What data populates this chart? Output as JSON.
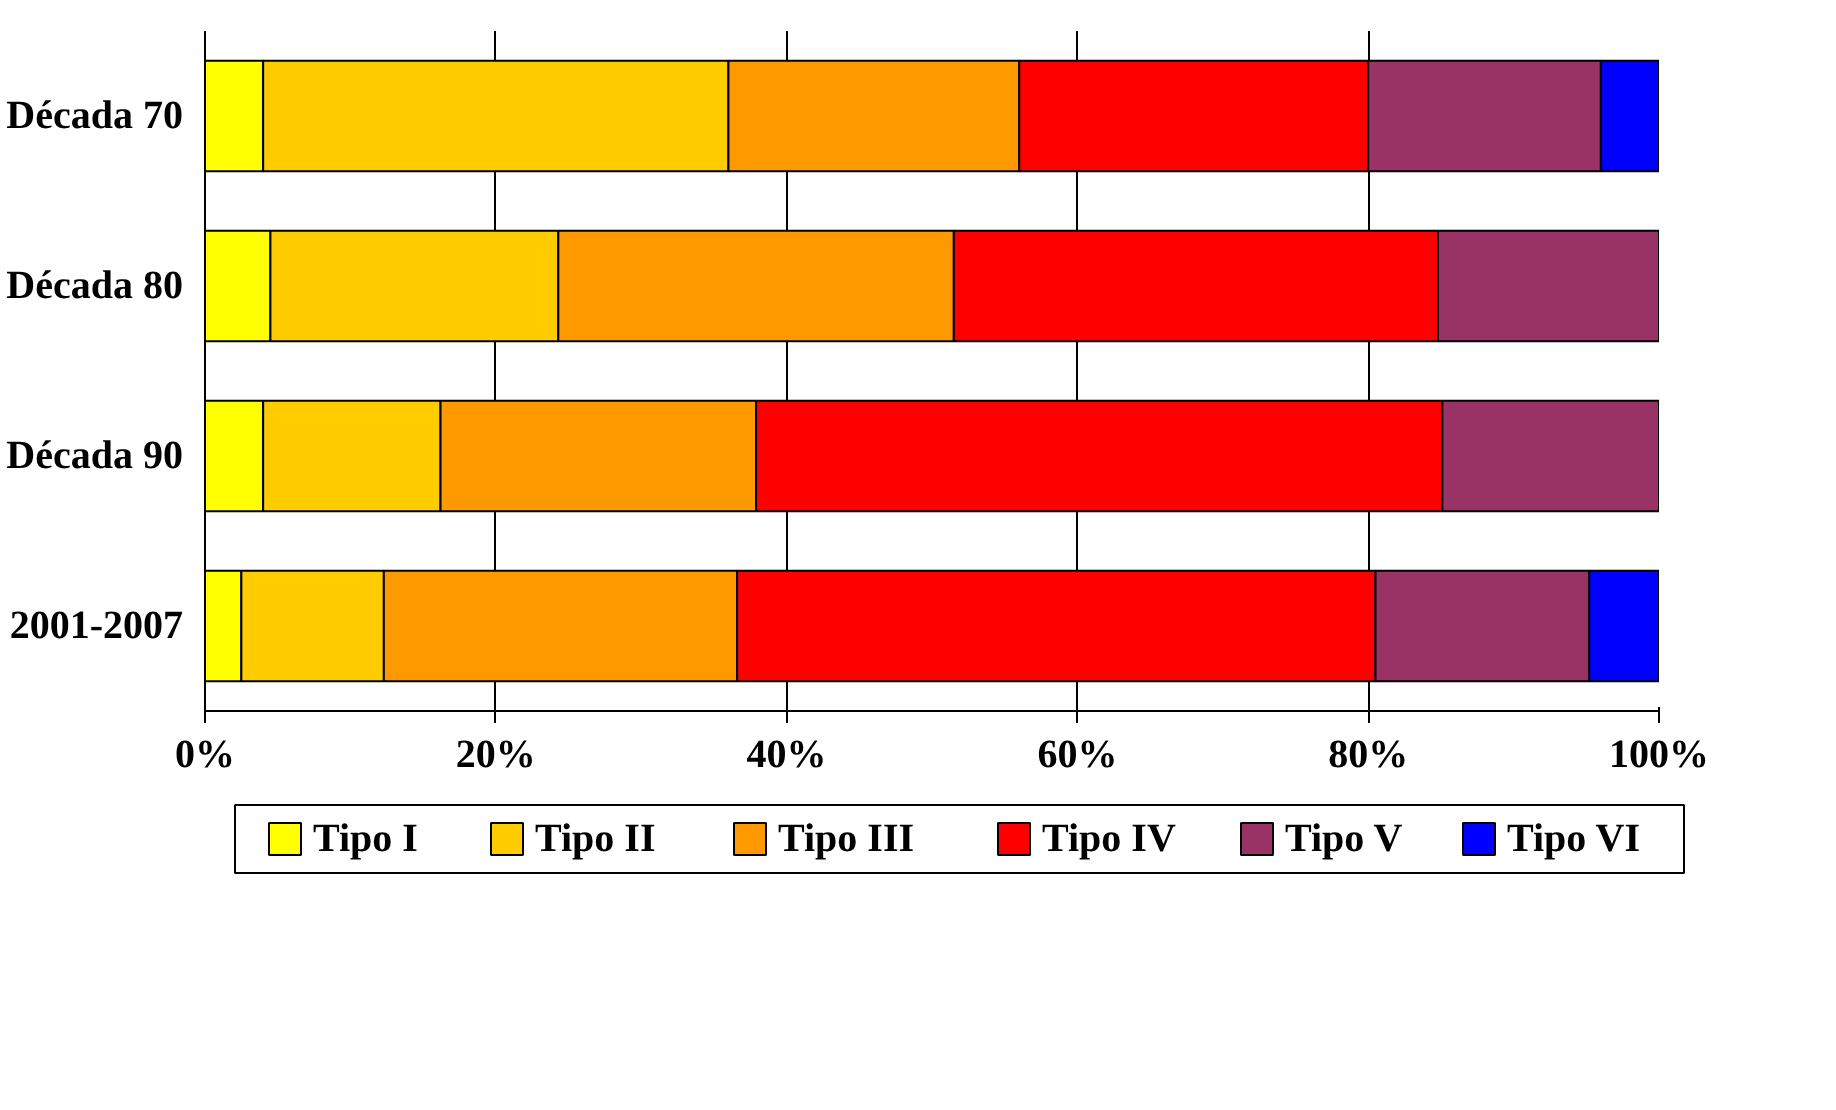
{
  "chart_data": {
    "type": "bar",
    "orientation": "horizontal",
    "stacked": true,
    "categories": [
      "Década 70",
      "Década 80",
      "Década 90",
      "2001-2007"
    ],
    "series": [
      {
        "name": "Tipo I",
        "color": "#ffff00",
        "values": [
          4.0,
          4.5,
          4.0,
          2.5
        ]
      },
      {
        "name": "Tipo II",
        "color": "#ffcc00",
        "values": [
          32.0,
          19.8,
          12.2,
          9.8
        ]
      },
      {
        "name": "Tipo III",
        "color": "#ff9900",
        "values": [
          20.0,
          27.2,
          21.7,
          24.3
        ]
      },
      {
        "name": "Tipo IV",
        "color": "#ff0000",
        "values": [
          24.0,
          33.3,
          47.2,
          43.9
        ]
      },
      {
        "name": "Tipo V",
        "color": "#993366",
        "values": [
          16.0,
          15.2,
          14.9,
          14.7
        ]
      },
      {
        "name": "Tipo VI",
        "color": "#0000ff",
        "values": [
          4.0,
          null,
          null,
          4.8
        ]
      }
    ],
    "xlim": [
      0,
      100
    ],
    "xticks": [
      {
        "value": 0,
        "label": "0%"
      },
      {
        "value": 20,
        "label": "20%"
      },
      {
        "value": 40,
        "label": "40%"
      },
      {
        "value": 60,
        "label": "60%"
      },
      {
        "value": 80,
        "label": "80%"
      },
      {
        "value": 100,
        "label": "100%"
      }
    ],
    "grid": "x",
    "legend": "bottom"
  }
}
